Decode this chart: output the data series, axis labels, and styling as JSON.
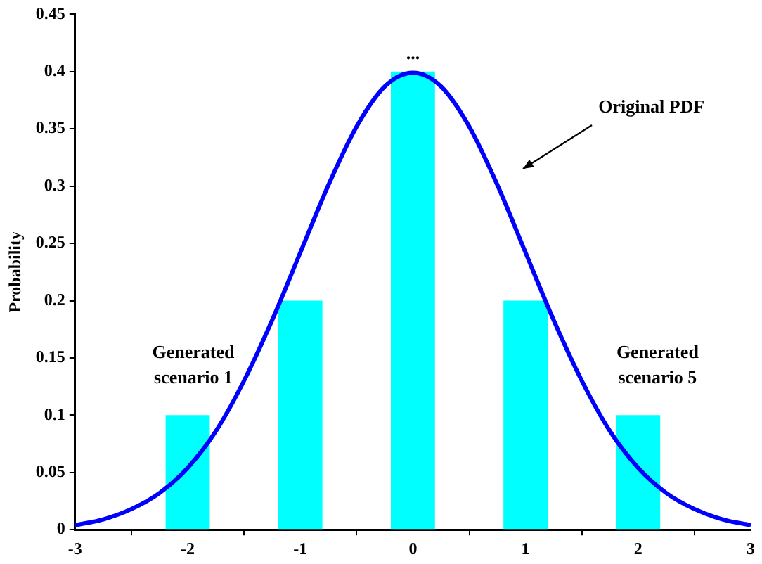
{
  "chart_data": {
    "type": "bar",
    "ylabel": "Probability",
    "xlim": [
      -3,
      3
    ],
    "xticks": [
      -3,
      -2,
      -1,
      0,
      1,
      2,
      3
    ],
    "ylim": [
      0,
      0.45
    ],
    "yticks": [
      0,
      0.05,
      0.1,
      0.15,
      0.2,
      0.25,
      0.3,
      0.35,
      0.4,
      0.45
    ],
    "grid": false,
    "legend": false,
    "series": [
      {
        "color": "#00ffff",
        "x": [
          -2,
          -1,
          0,
          1,
          2
        ],
        "values": [
          0.1,
          0.2,
          0.4,
          0.2,
          0.1
        ]
      },
      {
        "type": "line",
        "color": "#0000ff",
        "marker": "none",
        "line_style": "solid",
        "x": [
          -3,
          -2.75,
          -2.5,
          -2.25,
          -2,
          -1.75,
          -1.5,
          -1.25,
          -1,
          -0.75,
          -0.5,
          -0.25,
          0,
          0.25,
          0.5,
          0.75,
          1,
          1.25,
          1.5,
          1.75,
          2,
          2.25,
          2.5,
          2.75,
          3
        ],
        "values": [
          0.004,
          0.009,
          0.018,
          0.032,
          0.054,
          0.086,
          0.13,
          0.183,
          0.242,
          0.301,
          0.352,
          0.387,
          0.399,
          0.387,
          0.352,
          0.301,
          0.242,
          0.183,
          0.13,
          0.086,
          0.054,
          0.032,
          0.018,
          0.009,
          0.004
        ]
      }
    ],
    "annotations": [
      "...",
      "Original PDF",
      "Generated scenario 1",
      "Generated scenario 5"
    ]
  }
}
